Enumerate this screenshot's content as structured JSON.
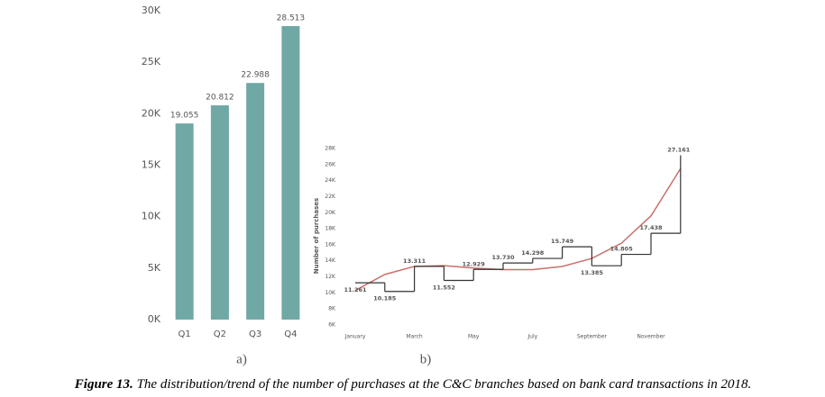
{
  "chart_data": [
    {
      "type": "bar",
      "panel_label": "a)",
      "categories": [
        "Q1",
        "Q2",
        "Q3",
        "Q4"
      ],
      "values": [
        19055,
        20812,
        22988,
        28513
      ],
      "value_labels": [
        "19.055",
        "20.812",
        "22.988",
        "28.513"
      ],
      "color": "#6fa8a4",
      "ylim": [
        0,
        30000
      ],
      "yticks": [
        {
          "value": 0,
          "label": "0K"
        },
        {
          "value": 5000,
          "label": "5K"
        },
        {
          "value": 10000,
          "label": "10K"
        },
        {
          "value": 15000,
          "label": "15K"
        },
        {
          "value": 20000,
          "label": "20K"
        },
        {
          "value": 25000,
          "label": "25K"
        },
        {
          "value": 30000,
          "label": "30K"
        }
      ]
    },
    {
      "type": "step",
      "panel_label": "b)",
      "y_label": "Number of purchases",
      "categories": [
        "January",
        null,
        "March",
        null,
        "May",
        null,
        "July",
        null,
        "September",
        null,
        "November",
        null
      ],
      "values": [
        11261,
        10185,
        13311,
        11552,
        12929,
        13730,
        14298,
        15749,
        13385,
        14805,
        17438,
        27161
      ],
      "value_labels": [
        "11.261",
        "10.185",
        "13.311",
        "11.552",
        "12.929",
        "13.730",
        "14.298",
        "15.749",
        "13.385",
        "14.805",
        "17.438",
        "27.161"
      ],
      "color": "#333333",
      "trend": {
        "color": "#c9706a",
        "values": [
          10300,
          12300,
          13300,
          13400,
          13100,
          12900,
          12900,
          13300,
          14300,
          16200,
          19600,
          25500
        ]
      },
      "ylim": [
        6000,
        28500
      ],
      "yticks": [
        {
          "value": 6000,
          "label": "6K"
        },
        {
          "value": 8000,
          "label": "8K"
        },
        {
          "value": 10000,
          "label": "10K"
        },
        {
          "value": 12000,
          "label": "12K"
        },
        {
          "value": 14000,
          "label": "14K"
        },
        {
          "value": 16000,
          "label": "16K"
        },
        {
          "value": 18000,
          "label": "18K"
        },
        {
          "value": 20000,
          "label": "20K"
        },
        {
          "value": 22000,
          "label": "22K"
        },
        {
          "value": 24000,
          "label": "24K"
        },
        {
          "value": 26000,
          "label": "26K"
        },
        {
          "value": 28000,
          "label": "28K"
        }
      ]
    }
  ],
  "caption": {
    "label": "Figure 13.",
    "text": "The distribution/trend of the number of purchases at the C&C branches based on bank card transactions in 2018."
  }
}
